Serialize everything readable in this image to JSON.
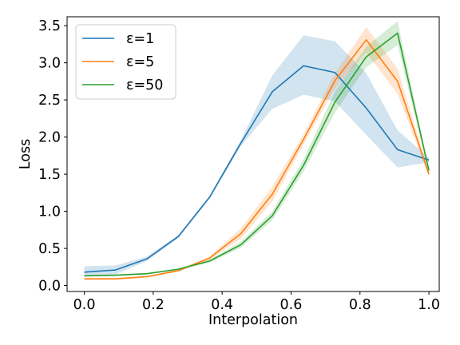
{
  "chart_data": {
    "type": "line",
    "xlabel": "Interpolation",
    "ylabel": "Loss",
    "xlim": [
      -0.05,
      1.03
    ],
    "ylim": [
      -0.08,
      3.62
    ],
    "xticks": [
      0.0,
      0.2,
      0.4,
      0.6,
      0.8,
      1.0
    ],
    "xtick_labels": [
      "0.0",
      "0.2",
      "0.4",
      "0.6",
      "0.8",
      "1.0"
    ],
    "yticks": [
      0.0,
      0.5,
      1.0,
      1.5,
      2.0,
      2.5,
      3.0,
      3.5
    ],
    "ytick_labels": [
      "0.0",
      "0.5",
      "1.0",
      "1.5",
      "2.0",
      "2.5",
      "3.0",
      "3.5"
    ],
    "grid": false,
    "legend_position": "top-left",
    "x": [
      0.0,
      0.0909,
      0.1818,
      0.2727,
      0.3636,
      0.4545,
      0.5455,
      0.6364,
      0.7273,
      0.8182,
      0.9091,
      1.0
    ],
    "series": [
      {
        "name": "ε=1",
        "color": "#1f77b4",
        "values": [
          0.18,
          0.21,
          0.36,
          0.66,
          1.19,
          1.92,
          2.61,
          2.96,
          2.87,
          2.39,
          1.83,
          1.69
        ],
        "lower": [
          0.12,
          0.15,
          0.33,
          0.64,
          1.17,
          1.88,
          2.38,
          2.57,
          2.48,
          2.03,
          1.59,
          1.66
        ],
        "upper": [
          0.26,
          0.27,
          0.39,
          0.68,
          1.21,
          1.96,
          2.83,
          3.37,
          3.29,
          2.86,
          2.09,
          1.72
        ]
      },
      {
        "name": "ε=5",
        "color": "#ff7f0e",
        "values": [
          0.09,
          0.09,
          0.12,
          0.2,
          0.37,
          0.7,
          1.23,
          1.97,
          2.76,
          3.31,
          2.75,
          1.5
        ],
        "lower": [
          0.08,
          0.08,
          0.11,
          0.19,
          0.35,
          0.63,
          1.13,
          1.9,
          2.66,
          3.14,
          2.58,
          1.47
        ],
        "upper": [
          0.1,
          0.1,
          0.13,
          0.21,
          0.39,
          0.77,
          1.33,
          2.04,
          2.86,
          3.48,
          2.92,
          1.53
        ]
      },
      {
        "name": "ε=50",
        "color": "#2ca02c",
        "values": [
          0.13,
          0.14,
          0.16,
          0.22,
          0.33,
          0.55,
          0.94,
          1.62,
          2.47,
          3.08,
          3.4,
          1.55
        ],
        "lower": [
          0.12,
          0.13,
          0.15,
          0.21,
          0.31,
          0.51,
          0.88,
          1.54,
          2.33,
          2.94,
          3.24,
          1.52
        ],
        "upper": [
          0.14,
          0.15,
          0.17,
          0.23,
          0.35,
          0.59,
          1.0,
          1.7,
          2.61,
          3.22,
          3.56,
          1.58
        ]
      }
    ]
  }
}
